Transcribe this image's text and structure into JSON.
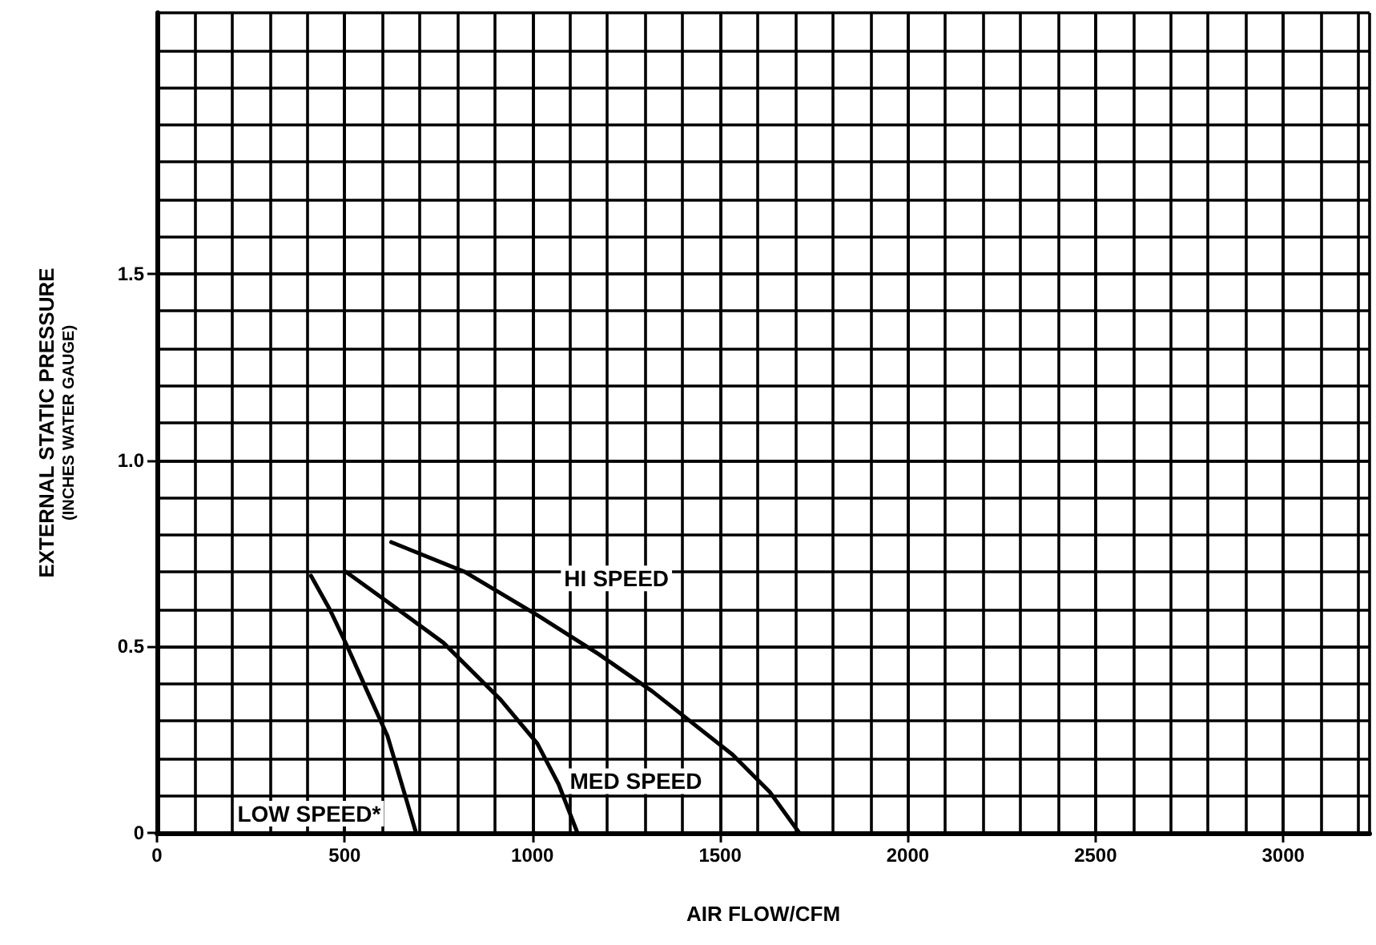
{
  "chart_data": {
    "type": "line",
    "xlabel": "AIR FLOW/CFM",
    "ylabel": "EXTERNAL STATIC PRESSURE\n(INCHES WATER GAUGE)",
    "xlim": [
      0,
      3230
    ],
    "xticks": [
      0,
      500,
      1000,
      1500,
      2000,
      2500,
      3000
    ],
    "ylim": [
      0,
      2.2
    ],
    "yticks": [
      0,
      0.5,
      {
        "value": 1.0,
        "label": "1.0"
      },
      1.5
    ],
    "grid": true,
    "legend": false,
    "marker": "none",
    "line_style": "solid",
    "series": [
      {
        "name": "HI SPEED",
        "color": "#000000",
        "x": [
          624,
          820,
          1020,
          1176,
          1319,
          1533,
          1632,
          1711
        ],
        "values": [
          0.78,
          0.7,
          0.58,
          0.48,
          0.38,
          0.21,
          0.11,
          0
        ]
      },
      {
        "name": "MED SPEED",
        "color": "#000000",
        "x": [
          504,
          614,
          763,
          913,
          1013,
          1070,
          1120
        ],
        "values": [
          0.7,
          0.62,
          0.51,
          0.36,
          0.24,
          0.13,
          0
        ]
      },
      {
        "name": "LOW SPEED*",
        "color": "#000000",
        "x": [
          410,
          460,
          507,
          560,
          614,
          664,
          690
        ],
        "values": [
          0.69,
          0.6,
          0.5,
          0.38,
          0.26,
          0.09,
          0
        ]
      }
    ]
  }
}
